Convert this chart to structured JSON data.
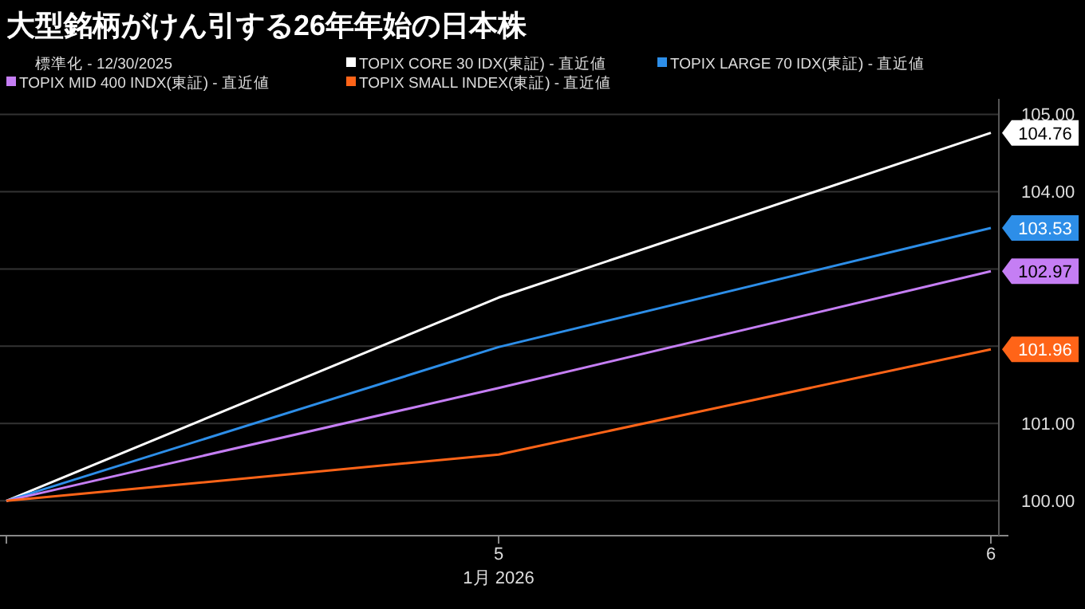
{
  "chart_data": {
    "type": "line",
    "title": "大型銘柄がけん引する26年年始の日本株",
    "legend_title": "標準化 - 12/30/2025",
    "xlabel": "1月 2026",
    "categories": [
      null,
      "5",
      "6"
    ],
    "series": [
      {
        "name": "TOPIX CORE 30 IDX(東証) - 直近値",
        "color": "#ffffff",
        "values": [
          100,
          102.63,
          104.76
        ],
        "value_labels": [
          null,
          null,
          "104.76"
        ]
      },
      {
        "name": "TOPIX LARGE 70 IDX(東証) - 直近値",
        "color": "#2d8ee8",
        "values": [
          100,
          101.99,
          103.53
        ],
        "value_labels": [
          null,
          null,
          "103.53"
        ]
      },
      {
        "name": "TOPIX MID 400 INDX(東証) - 直近値",
        "color": "#c57ef4",
        "values": [
          100,
          101.46,
          102.97
        ],
        "value_labels": [
          null,
          null,
          "102.97"
        ]
      },
      {
        "name": "TOPIX SMALL INDEX(東証) - 直近値",
        "color": "#ff6418",
        "values": [
          100,
          100.6,
          101.96
        ],
        "value_labels": [
          null,
          null,
          "101.96"
        ]
      }
    ],
    "ylim": [
      99.55,
      105.2
    ],
    "yticks": [
      {
        "value": 100,
        "label": "100.00"
      },
      {
        "value": 101,
        "label": "101.00"
      },
      {
        "value": 102,
        "label": null
      },
      {
        "value": 103,
        "label": null
      },
      {
        "value": 104,
        "label": "104.00"
      },
      {
        "value": 105,
        "label": "105.00"
      }
    ],
    "grid": "y",
    "legend": "top"
  }
}
